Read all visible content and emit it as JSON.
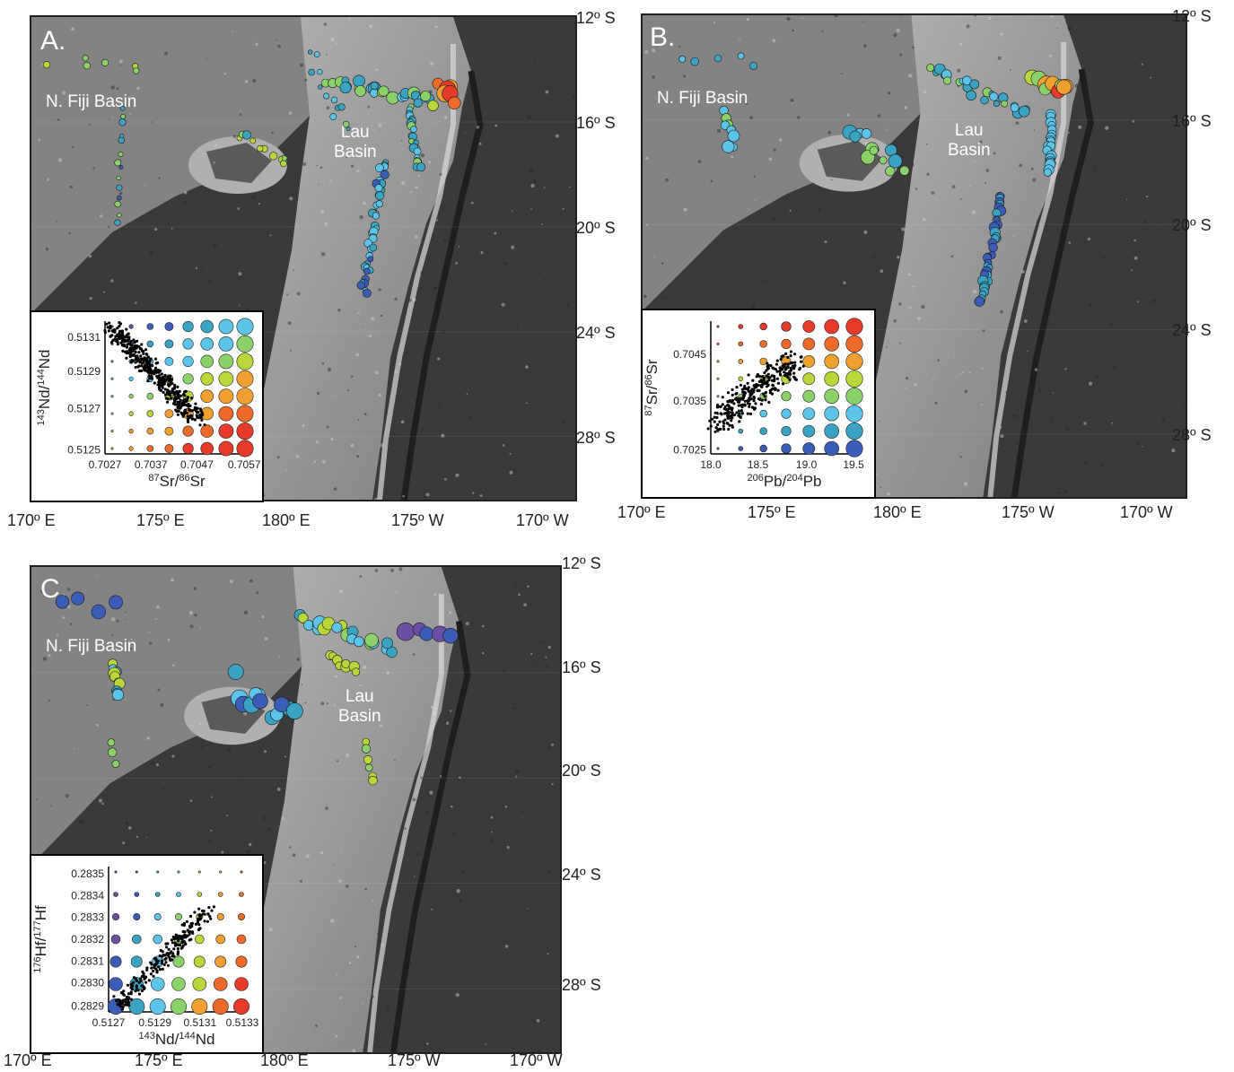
{
  "colors": {
    "ocean_dark": "#3a3a3a",
    "plateau": "#9a9a9a",
    "ridge": "#c8c8c8",
    "palette": [
      "#6a4fa3",
      "#3b5db8",
      "#3aa3c2",
      "#5cc4e8",
      "#8cd06a",
      "#b9d63a",
      "#f0a030",
      "#ee6a2a",
      "#e63a2a"
    ]
  },
  "lat_labels": [
    "12º S",
    "16º S",
    "20º S",
    "24º S",
    "28º S"
  ],
  "lon_labels": [
    "170º E",
    "175º E",
    "180º E",
    "175º W",
    "170º W"
  ],
  "place_names": {
    "nfiji": "N. Fiji Basin",
    "lau_1": "Lau",
    "lau_2": "Basin"
  },
  "panels": [
    {
      "id": "A",
      "label": "A.",
      "inset": {
        "xlabel_parts": [
          "87",
          "Sr/",
          "86",
          "Sr"
        ],
        "ylabel_parts": [
          "143",
          "Nd/",
          "144",
          "Nd"
        ],
        "xticks": [
          "0.7027",
          "0.7037",
          "0.7047",
          "0.7057"
        ],
        "yticks": [
          "0.5131",
          "0.5129",
          "0.5127",
          "0.5125"
        ]
      }
    },
    {
      "id": "B",
      "label": "B.",
      "inset": {
        "xlabel_parts": [
          "206",
          "Pb/",
          "204",
          "Pb"
        ],
        "ylabel_parts": [
          "87",
          "Sr/",
          "86",
          "Sr"
        ],
        "xticks": [
          "18.0",
          "18.5",
          "19.0",
          "19.5"
        ],
        "yticks": [
          "0.7045",
          "0.7035",
          "0.7025"
        ]
      }
    },
    {
      "id": "C",
      "label": "C.",
      "inset": {
        "xlabel_parts": [
          "143",
          "Nd/",
          "144",
          "Nd"
        ],
        "ylabel_parts": [
          "176",
          "Hf/",
          "177",
          "Hf"
        ],
        "xticks": [
          "0.5127",
          "0.5129",
          "0.5131",
          "0.5133"
        ],
        "yticks": [
          "0.2835",
          "0.2834",
          "0.2833",
          "0.2832",
          "0.2831",
          "0.2830",
          "0.2829"
        ]
      }
    }
  ]
}
